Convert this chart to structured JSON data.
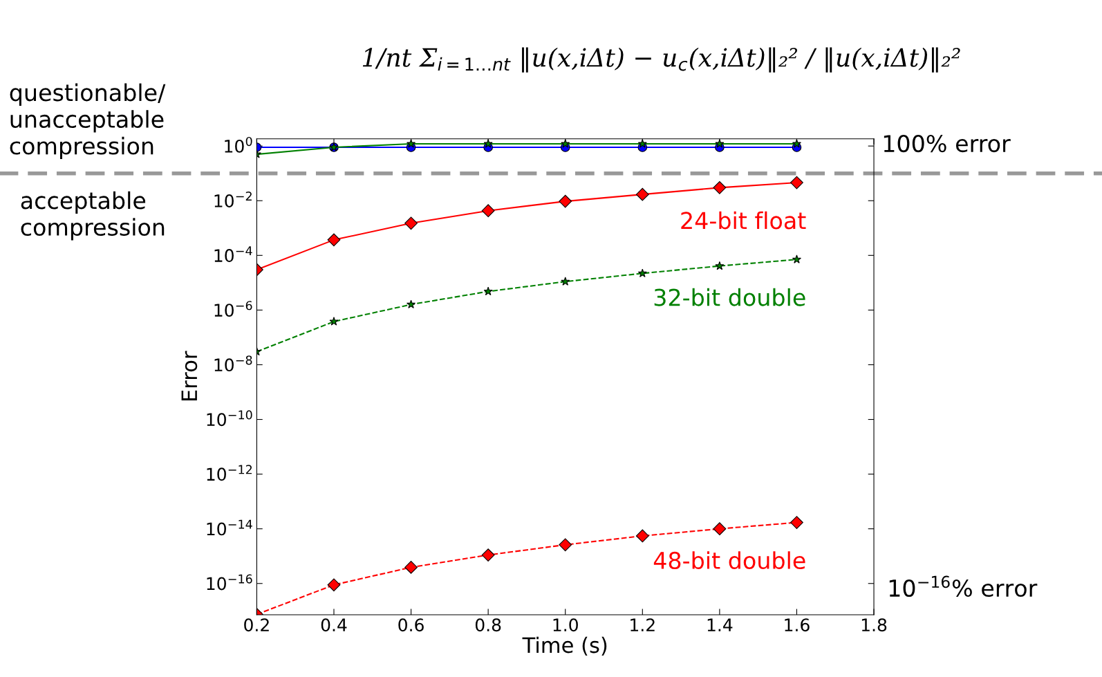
{
  "chart_data": {
    "type": "line",
    "title": "1/nt Σ$_{i=1…nt}$ ‖u(x,iΔt) − u$_{c}$(x,iΔt)‖₂² / ‖u(x,iΔt)‖₂²",
    "xlabel": "Time (s)",
    "ylabel": "Error",
    "x": [
      0.2,
      0.4,
      0.6,
      0.8,
      1.0,
      1.2,
      1.4,
      1.6
    ],
    "series": [
      {
        "color": "#0000ff",
        "marker": "circle",
        "line_style": "solid",
        "values": [
          0.9,
          0.9,
          0.9,
          0.9,
          0.9,
          0.9,
          0.9,
          0.9
        ]
      },
      {
        "color": "#008000",
        "marker": "star",
        "line_style": "solid",
        "values": [
          0.5,
          0.9,
          1.2,
          1.2,
          1.2,
          1.2,
          1.2,
          1.2
        ]
      },
      {
        "name": "24-bit float",
        "color": "#ff0000",
        "marker": "diamond",
        "line_style": "solid",
        "values": [
          3e-05,
          0.00037,
          0.0015,
          0.0043,
          0.0095,
          0.017,
          0.03,
          0.046
        ]
      },
      {
        "name": "32-bit double",
        "color": "#008000",
        "marker": "star",
        "line_style": "dashed",
        "values": [
          3e-08,
          3.8e-07,
          1.6e-06,
          4.8e-06,
          1.1e-05,
          2.2e-05,
          4.1e-05,
          7.1e-05
        ]
      },
      {
        "name": "48-bit double",
        "color": "#ff0000",
        "marker": "diamond",
        "line_style": "dashed",
        "values": [
          7.4e-18,
          8.9e-17,
          3.9e-16,
          1.1e-15,
          2.6e-15,
          5.5e-15,
          1e-14,
          1.7e-14
        ]
      }
    ],
    "log": "y",
    "xlim": [
      0.2,
      1.8
    ],
    "xticks": [
      0.2,
      0.4,
      0.6,
      0.8,
      {
        "value": 1.0,
        "label": "1.0"
      },
      1.2,
      1.4,
      1.6,
      1.8
    ],
    "ylim": [
      7.2e-18,
      1.84
    ],
    "yticks": [
      {
        "value": 1,
        "label": "10$^{0}$"
      },
      {
        "value": 0.01,
        "label": "10$^{−2}$"
      },
      {
        "value": 0.0001,
        "label": "10$^{−4}$"
      },
      {
        "value": 1e-06,
        "label": "10$^{−6}$"
      },
      {
        "value": 1e-08,
        "label": "10$^{−8}$"
      },
      {
        "value": 1e-10,
        "label": "10$^{−10}$"
      },
      {
        "value": 1e-12,
        "label": "10$^{−12}$"
      },
      {
        "value": 1e-14,
        "label": "10$^{−14}$"
      },
      {
        "value": 1e-16,
        "label": "10$^{−16}$"
      }
    ],
    "ref_lines": [
      {
        "axis": "y",
        "value": 0.1,
        "color": "#999999",
        "line_style": "dashed"
      }
    ],
    "annotations": [
      "questionable/\nunacceptable\ncompression",
      "acceptable\ncompression",
      "100% error",
      "10$^{−16}$% error"
    ],
    "grid": false,
    "legend": false
  }
}
